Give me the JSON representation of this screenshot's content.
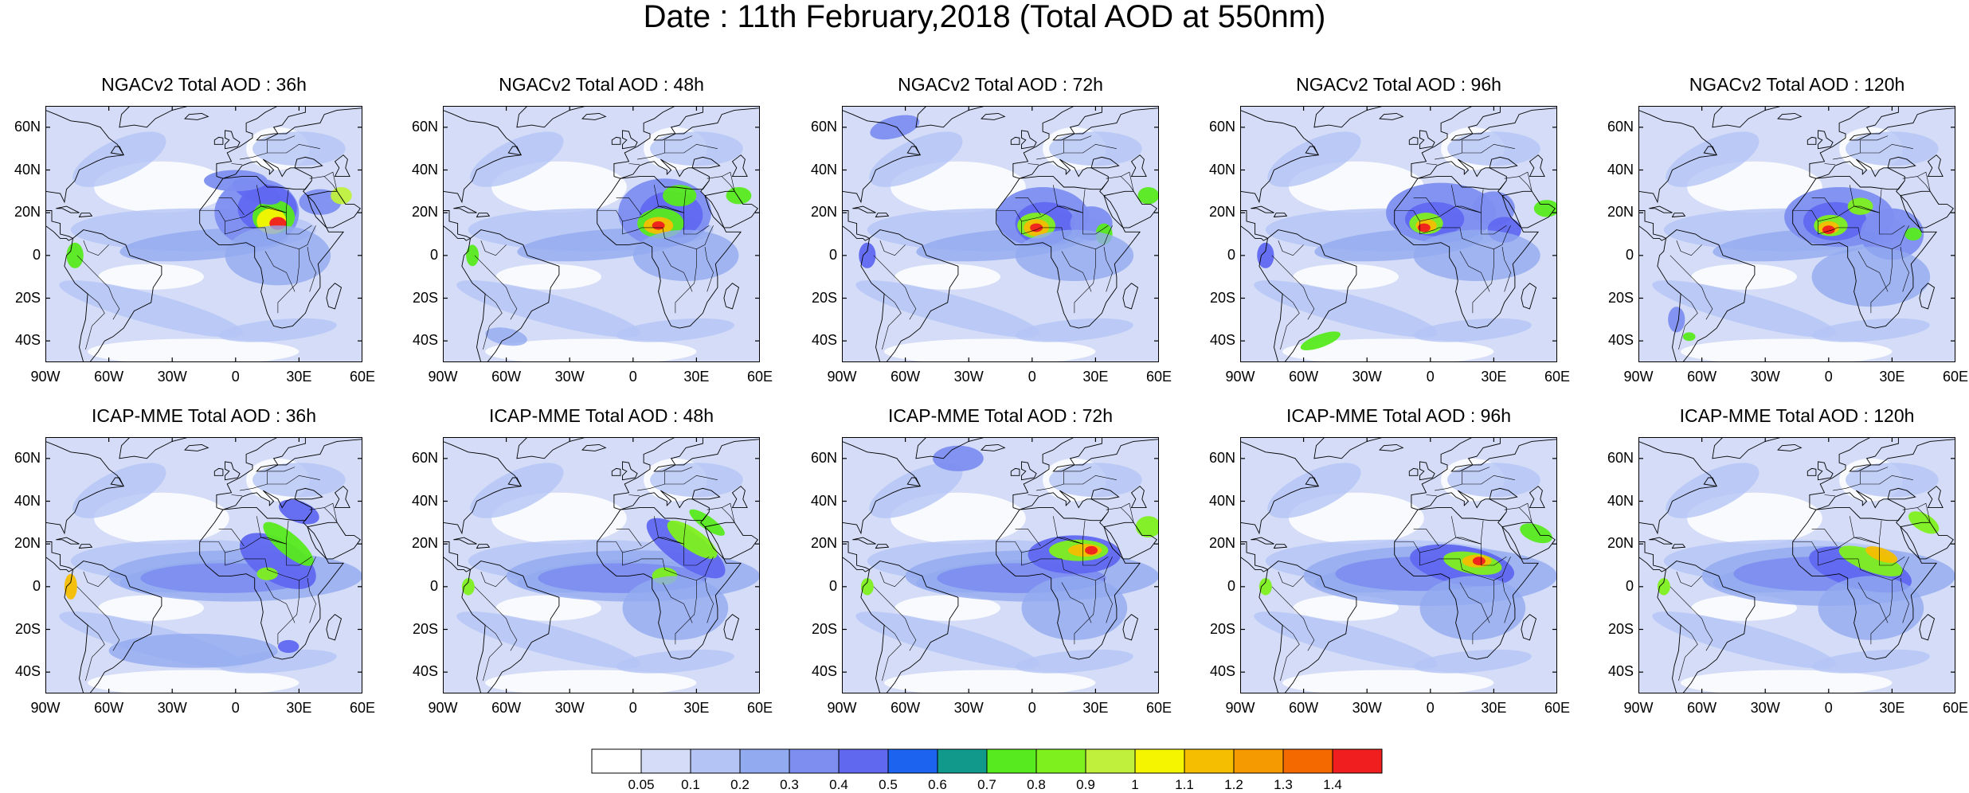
{
  "title": "Date : 11th February,2018 (Total AOD at 550nm)",
  "rows": [
    {
      "model": "NGACv2",
      "panels": [
        {
          "title": "NGACv2 Total AOD : 36h"
        },
        {
          "title": "NGACv2 Total AOD : 48h"
        },
        {
          "title": "NGACv2 Total AOD : 72h"
        },
        {
          "title": "NGACv2 Total AOD : 96h"
        },
        {
          "title": "NGACv2 Total AOD : 120h"
        }
      ]
    },
    {
      "model": "ICAP-MME",
      "panels": [
        {
          "title": "ICAP-MME Total AOD : 36h"
        },
        {
          "title": "ICAP-MME Total AOD : 48h"
        },
        {
          "title": "ICAP-MME Total AOD : 72h"
        },
        {
          "title": "ICAP-MME Total AOD : 96h"
        },
        {
          "title": "ICAP-MME Total AOD : 120h"
        }
      ]
    }
  ],
  "map": {
    "lon_range": [
      -90,
      60
    ],
    "lat_range": [
      -50,
      70
    ],
    "lat_ticks": [
      {
        "value": 60,
        "label": "60N"
      },
      {
        "value": 40,
        "label": "40N"
      },
      {
        "value": 20,
        "label": "20N"
      },
      {
        "value": 0,
        "label": "0"
      },
      {
        "value": -20,
        "label": "20S"
      },
      {
        "value": -40,
        "label": "40S"
      }
    ],
    "lon_ticks": [
      {
        "value": -90,
        "label": "90W"
      },
      {
        "value": -60,
        "label": "60W"
      },
      {
        "value": -30,
        "label": "30W"
      },
      {
        "value": 0,
        "label": "0"
      },
      {
        "value": 30,
        "label": "30E"
      },
      {
        "value": 60,
        "label": "60E"
      }
    ]
  },
  "colorbar": {
    "labels": [
      "0.05",
      "0.1",
      "0.2",
      "0.3",
      "0.4",
      "0.5",
      "0.6",
      "0.7",
      "0.8",
      "0.9",
      "1",
      "1.1",
      "1.2",
      "1.3",
      "1.4"
    ],
    "colors": [
      "#ffffff",
      "#d4dcf7",
      "#b4c4f5",
      "#92aaf0",
      "#7d8ef0",
      "#6068f0",
      "#1c64f0",
      "#11998c",
      "#57ea1e",
      "#7ef01e",
      "#c0f03c",
      "#f5f500",
      "#f5be00",
      "#f59a00",
      "#f56a00",
      "#f01e1e"
    ]
  }
}
